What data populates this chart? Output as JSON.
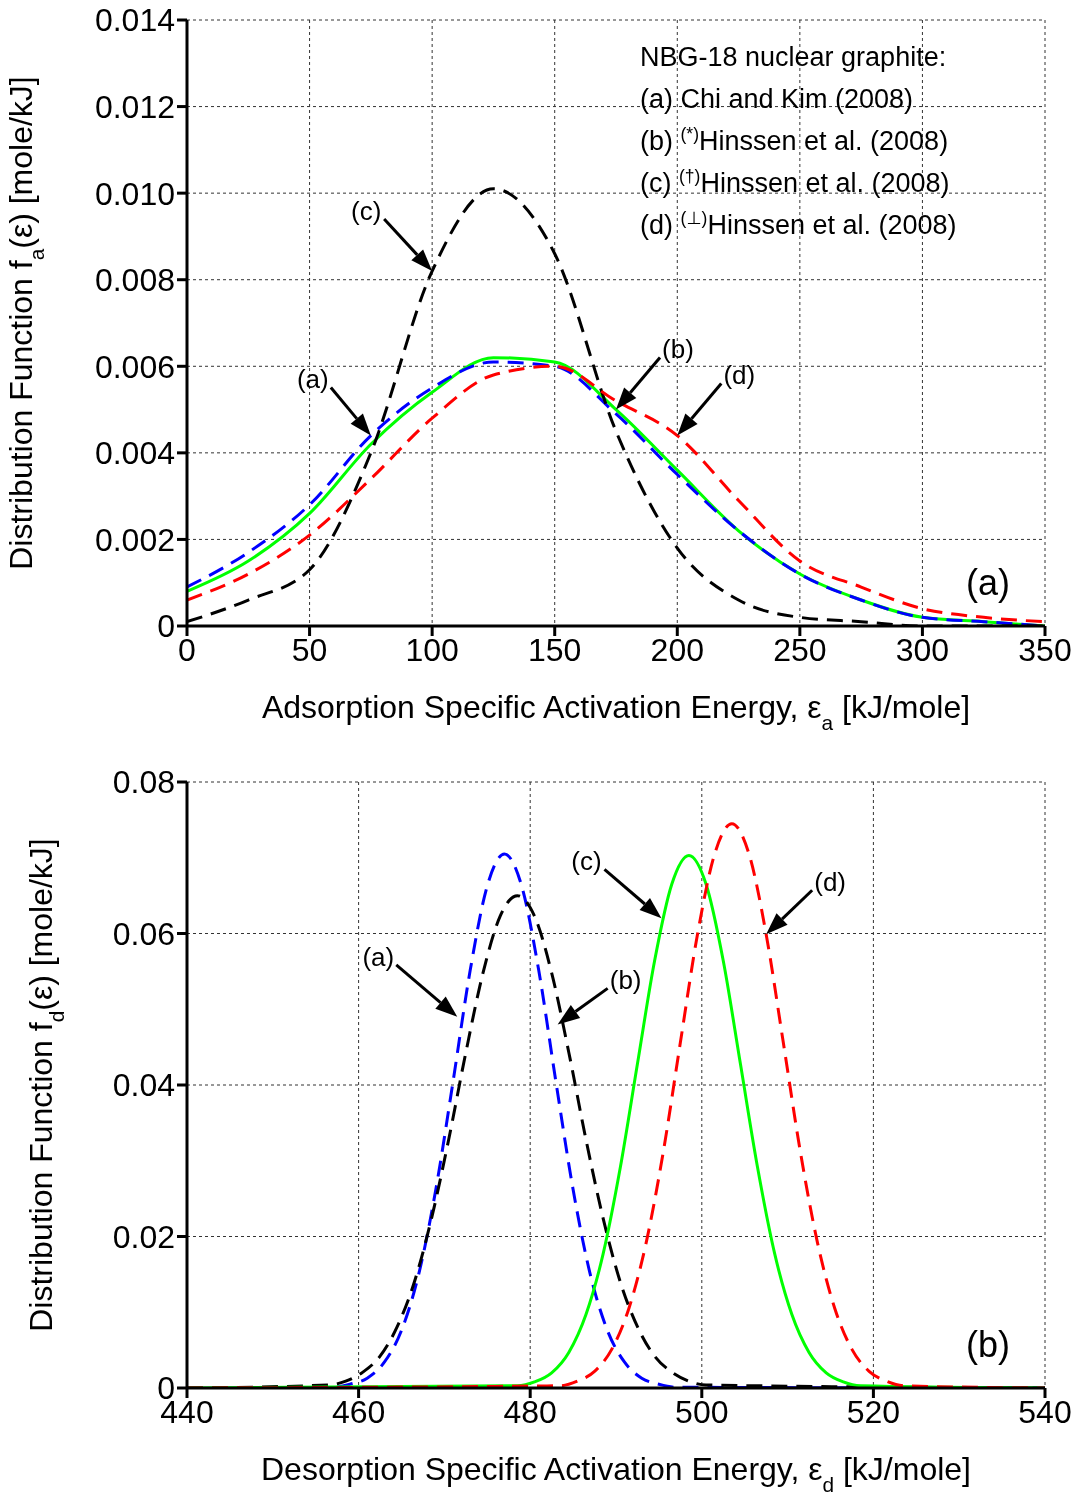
{
  "chart_data": [
    {
      "type": "line",
      "xlabel": "Adsorption Specific Activation Energy, ε$_{a}$  [kJ/mole]",
      "ylabel": "Distribution Function f$_{a}$(ε)  [mole/kJ]",
      "xlim": [
        0,
        350
      ],
      "xticks": [
        0,
        50,
        100,
        150,
        200,
        250,
        300,
        350
      ],
      "ylim": [
        0,
        0.014
      ],
      "yticks": [
        0,
        0.002,
        0.004,
        0.006,
        0.008,
        {
          "value": 0.01,
          "label": "0.010"
        },
        0.012,
        0.014
      ],
      "grid": true,
      "legend": false,
      "marker": "none",
      "x": [
        0,
        25,
        50,
        75,
        100,
        125,
        150,
        175,
        200,
        225,
        250,
        275,
        300,
        325,
        350
      ],
      "series": [
        {
          "color": "#00ff00",
          "line_style": "solid",
          "values": [
            0.0008,
            0.0015,
            0.0026,
            0.0042,
            0.0054,
            0.0062,
            0.0061,
            0.005,
            0.0036,
            0.0022,
            0.0012,
            0.0006,
            0.0002,
            0.0001,
            0
          ]
        },
        {
          "color": "#0000ff",
          "line_style": "dashed",
          "values": [
            0.0009,
            0.0017,
            0.0028,
            0.0044,
            0.0055,
            0.0061,
            0.006,
            0.0049,
            0.0035,
            0.0022,
            0.0012,
            0.0006,
            0.0002,
            0.0001,
            0
          ]
        },
        {
          "color": "#000000",
          "line_style": "dashed",
          "values": [
            0.0001,
            0.0006,
            0.0013,
            0.004,
            0.0082,
            0.0101,
            0.0086,
            0.0045,
            0.0018,
            0.0006,
            0.0002,
            0.0001,
            0,
            0,
            0
          ]
        },
        {
          "color": "#ff0000",
          "line_style": "dashed",
          "values": [
            0.0006,
            0.0012,
            0.0021,
            0.0034,
            0.0048,
            0.0058,
            0.006,
            0.0052,
            0.0044,
            0.0029,
            0.0015,
            0.0009,
            0.0004,
            0.0002,
            0.0001
          ]
        }
      ],
      "annotations": [
        {
          "text": "(a)",
          "x": 75,
          "y": 0.0044
        },
        {
          "text": "(b)",
          "x": 175,
          "y": 0.005
        },
        {
          "text": "(c)",
          "x": 100,
          "y": 0.0082
        },
        {
          "text": "(d)",
          "x": 200,
          "y": 0.0044
        },
        "NBG-18 nuclear graphite:",
        "(a) Chi and Kim (2008)",
        "(b) $^{(*)}$Hinssen et al. (2008)",
        "(c) $^{(†)}$Hinssen et al. (2008)",
        "(d) $^{(⊥)}$Hinssen et al. (2008)",
        "(a)"
      ]
    },
    {
      "type": "line",
      "xlabel": "Desorption Specific Activation Energy, ε$_{d}$  [kJ/mole]",
      "ylabel": "Distribution Function f$_{d}$(ε)  [mole/kJ]",
      "xlim": [
        440,
        540
      ],
      "xticks": [
        440,
        460,
        480,
        500,
        520,
        540
      ],
      "ylim": [
        0,
        0.08
      ],
      "yticks": [
        0,
        0.02,
        0.04,
        0.06,
        0.08
      ],
      "grid": true,
      "legend": false,
      "marker": "none",
      "series": [
        {
          "color": "#0000ff",
          "line_style": "dashed",
          "x": [
            440,
            457,
            459,
            461,
            463,
            465,
            467,
            469,
            471,
            473,
            475,
            477,
            479,
            481,
            483,
            485,
            487,
            489,
            491,
            493,
            495,
            497,
            540
          ],
          "values": [
            0,
            0.0001,
            0.0005,
            0.0013,
            0.0034,
            0.0076,
            0.015,
            0.0262,
            0.0404,
            0.0551,
            0.0663,
            0.0705,
            0.0663,
            0.0551,
            0.0404,
            0.0262,
            0.015,
            0.0076,
            0.0034,
            0.0013,
            0.0005,
            0.0001,
            0
          ]
        },
        {
          "color": "#000000",
          "line_style": "dashed",
          "x": [
            440,
            456.5,
            458.5,
            460.5,
            462.5,
            464.5,
            466.5,
            468.5,
            470.5,
            472.5,
            474.5,
            476.5,
            478.5,
            480.5,
            482.5,
            484.5,
            486.5,
            488.5,
            490.5,
            492.5,
            494.5,
            496.5,
            498.5,
            500.5,
            540
          ],
          "values": [
            0,
            0.0004,
            0.0009,
            0.0021,
            0.0042,
            0.0081,
            0.014,
            0.0224,
            0.0328,
            0.0443,
            0.0548,
            0.0623,
            0.065,
            0.0623,
            0.0548,
            0.0443,
            0.0328,
            0.0224,
            0.014,
            0.0081,
            0.0042,
            0.0021,
            0.0009,
            0.0004,
            0
          ]
        },
        {
          "color": "#00ff00",
          "line_style": "solid",
          "x": [
            440,
            478.5,
            480.5,
            482.5,
            484.5,
            486.5,
            488.5,
            490.5,
            492.5,
            494.5,
            496.5,
            498.5,
            500.5,
            502.5,
            504.5,
            506.5,
            508.5,
            510.5,
            512.5,
            514.5,
            516.5,
            518.5,
            540
          ],
          "values": [
            0,
            0.0003,
            0.0008,
            0.002,
            0.0047,
            0.0097,
            0.0177,
            0.0291,
            0.0428,
            0.0564,
            0.0665,
            0.0703,
            0.0665,
            0.0564,
            0.0428,
            0.0291,
            0.0177,
            0.0097,
            0.0047,
            0.002,
            0.0008,
            0.0003,
            0
          ]
        },
        {
          "color": "#ff0000",
          "line_style": "dashed",
          "x": [
            440,
            483.5,
            485.5,
            487.5,
            489.5,
            491.5,
            493.5,
            495.5,
            497.5,
            499.5,
            501.5,
            503.5,
            505.5,
            507.5,
            509.5,
            511.5,
            513.5,
            515.5,
            517.5,
            519.5,
            521.5,
            523.5,
            540
          ],
          "values": [
            0,
            0.0003,
            0.0009,
            0.0022,
            0.0051,
            0.0105,
            0.0191,
            0.0311,
            0.0456,
            0.0599,
            0.0705,
            0.0745,
            0.0705,
            0.0599,
            0.0456,
            0.0311,
            0.0191,
            0.0105,
            0.0051,
            0.0022,
            0.0009,
            0.0003,
            0
          ]
        }
      ],
      "annotations": [
        {
          "text": "(a)",
          "x": 471.5,
          "y": 0.049
        },
        {
          "text": "(b)",
          "x": 483.2,
          "y": 0.048
        },
        {
          "text": "(c)",
          "x": 495.3,
          "y": 0.062
        },
        {
          "text": "(d)",
          "x": 507.5,
          "y": 0.0599
        },
        "(b)"
      ]
    }
  ]
}
